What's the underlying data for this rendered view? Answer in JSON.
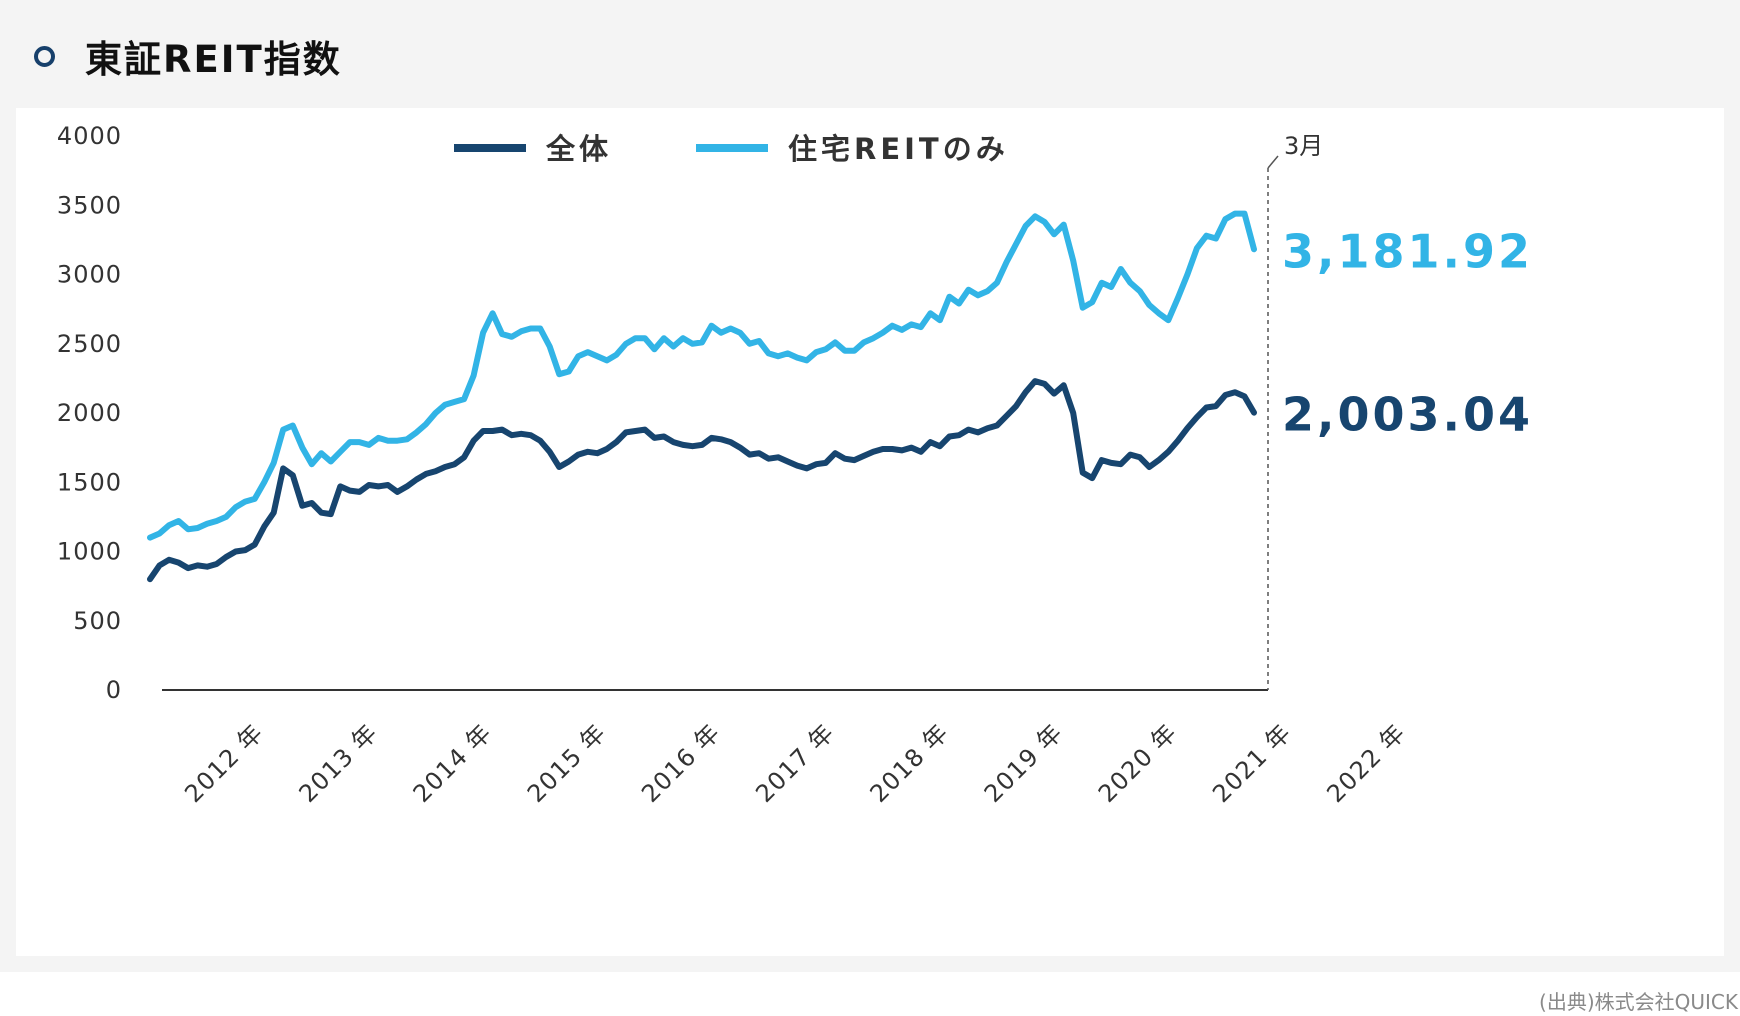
{
  "title": "東証REIT指数",
  "source": "(出典)株式会社QUICK",
  "colors": {
    "all": "#17456f",
    "residential": "#32b4e6",
    "axis": "#333333",
    "text": "#333333"
  },
  "chart_data": {
    "type": "line",
    "title": "東証REIT指数",
    "xlabel": "",
    "ylabel": "",
    "ylim": [
      0,
      4000
    ],
    "yticks": [
      "4000",
      "3500",
      "3000",
      "2500",
      "2000",
      "1500",
      "1000",
      "500",
      "0"
    ],
    "xtick_labels": [
      "2012 年",
      "2013 年",
      "2014 年",
      "2015 年",
      "2016 年",
      "2017 年",
      "2018 年",
      "2019 年",
      "2020 年",
      "2021 年",
      "2022 年"
    ],
    "x_start": "2012-01",
    "x_end": "2022-03",
    "end_marker_label": "3月",
    "legend_position": "top-center",
    "grid": false,
    "series": [
      {
        "name": "全体",
        "color": "#17456f",
        "end_label": "2,003.04",
        "values": [
          800,
          900,
          940,
          920,
          880,
          900,
          890,
          910,
          960,
          1000,
          1010,
          1050,
          1180,
          1280,
          1600,
          1550,
          1330,
          1350,
          1280,
          1270,
          1470,
          1440,
          1430,
          1480,
          1470,
          1480,
          1430,
          1470,
          1520,
          1560,
          1580,
          1610,
          1630,
          1680,
          1800,
          1870,
          1870,
          1880,
          1840,
          1850,
          1840,
          1800,
          1720,
          1610,
          1650,
          1700,
          1720,
          1710,
          1740,
          1790,
          1860,
          1870,
          1880,
          1820,
          1830,
          1790,
          1770,
          1760,
          1770,
          1820,
          1810,
          1790,
          1750,
          1700,
          1710,
          1670,
          1680,
          1650,
          1620,
          1600,
          1630,
          1640,
          1710,
          1670,
          1660,
          1690,
          1720,
          1740,
          1740,
          1730,
          1750,
          1720,
          1790,
          1760,
          1830,
          1840,
          1880,
          1860,
          1890,
          1910,
          1980,
          2050,
          2150,
          2230,
          2210,
          2140,
          2200,
          2000,
          1570,
          1530,
          1660,
          1640,
          1630,
          1700,
          1680,
          1610,
          1660,
          1720,
          1800,
          1890,
          1970,
          2040,
          2050,
          2130,
          2150,
          2120,
          2003.04
        ]
      },
      {
        "name": "住宅REITのみ",
        "color": "#32b4e6",
        "end_label": "3,181.92",
        "values": [
          1100,
          1130,
          1190,
          1220,
          1160,
          1170,
          1200,
          1220,
          1250,
          1320,
          1360,
          1380,
          1500,
          1640,
          1880,
          1910,
          1750,
          1630,
          1710,
          1650,
          1720,
          1790,
          1790,
          1770,
          1820,
          1800,
          1800,
          1810,
          1860,
          1920,
          2000,
          2060,
          2080,
          2100,
          2270,
          2580,
          2720,
          2570,
          2550,
          2590,
          2610,
          2610,
          2480,
          2280,
          2300,
          2410,
          2440,
          2410,
          2380,
          2420,
          2500,
          2540,
          2540,
          2460,
          2540,
          2480,
          2540,
          2500,
          2510,
          2630,
          2580,
          2610,
          2580,
          2500,
          2520,
          2430,
          2410,
          2430,
          2400,
          2380,
          2440,
          2460,
          2510,
          2450,
          2450,
          2510,
          2540,
          2580,
          2630,
          2600,
          2640,
          2620,
          2720,
          2670,
          2840,
          2790,
          2890,
          2850,
          2880,
          2940,
          3090,
          3220,
          3350,
          3420,
          3380,
          3290,
          3360,
          3100,
          2760,
          2800,
          2940,
          2910,
          3040,
          2940,
          2880,
          2780,
          2720,
          2670,
          2830,
          3000,
          3190,
          3280,
          3260,
          3400,
          3440,
          3440,
          3181.92
        ]
      }
    ]
  }
}
